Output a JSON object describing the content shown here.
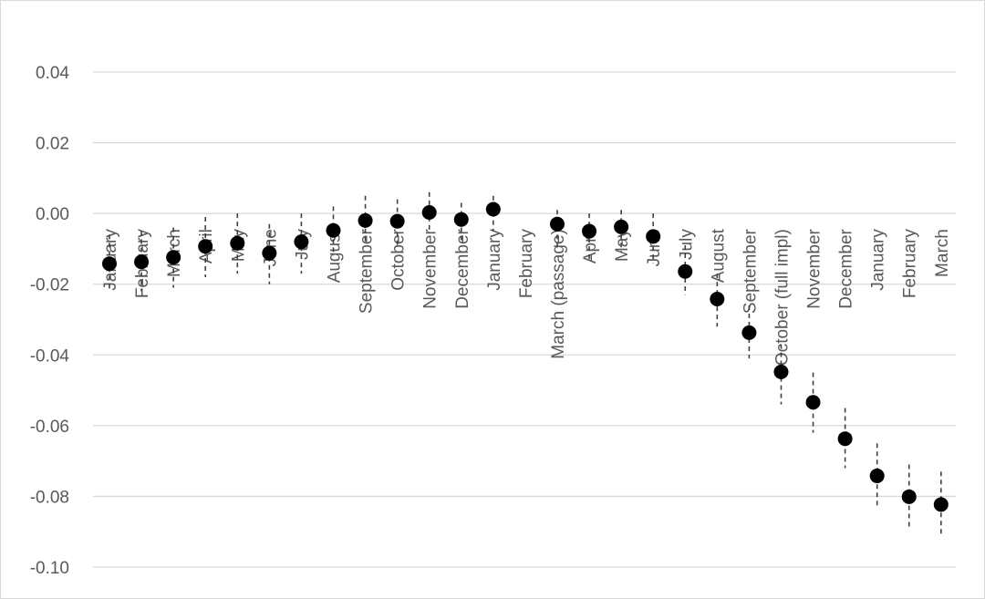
{
  "chart_data": {
    "type": "scatter",
    "title": "",
    "xlabel": "",
    "ylabel": "",
    "ylim": [
      -0.1,
      0.04
    ],
    "yticks": [
      "0.04",
      "0.02",
      "0.00",
      "-0.02",
      "-0.04",
      "-0.06",
      "-0.08",
      "-0.10"
    ],
    "grid": true,
    "categories": [
      "January",
      "February",
      "March",
      "April",
      "May",
      "June",
      "July",
      "August",
      "September",
      "October",
      "November",
      "December",
      "January",
      "February",
      "March (passage)",
      "April",
      "May",
      "June",
      "July",
      "August",
      "September",
      "October (full impl)",
      "November",
      "December",
      "January",
      "February",
      "March"
    ],
    "values": [
      -0.0142,
      -0.0137,
      -0.0124,
      -0.0093,
      -0.0084,
      -0.0112,
      -0.008,
      -0.0048,
      -0.002,
      -0.0022,
      0.0003,
      -0.0017,
      0.0012,
      null,
      -0.003,
      -0.005,
      -0.0038,
      -0.0065,
      -0.0164,
      -0.0242,
      -0.0337,
      -0.0448,
      -0.0534,
      -0.0637,
      -0.0742,
      -0.0801,
      -0.0823
    ],
    "ci_lower": [
      -0.022,
      -0.022,
      -0.021,
      -0.018,
      -0.017,
      -0.02,
      -0.017,
      -0.012,
      -0.008,
      -0.009,
      -0.005,
      -0.008,
      -0.005,
      null,
      -0.01,
      -0.013,
      -0.011,
      -0.014,
      -0.023,
      -0.032,
      -0.041,
      -0.054,
      -0.062,
      -0.072,
      -0.083,
      -0.089,
      -0.091
    ],
    "ci_upper": [
      -0.006,
      -0.005,
      -0.004,
      -0.001,
      -0.0,
      -0.003,
      0.0,
      0.002,
      0.005,
      0.004,
      0.006,
      0.003,
      0.005,
      null,
      0.001,
      0.0,
      0.001,
      -0.0,
      -0.009,
      -0.017,
      -0.026,
      -0.037,
      -0.045,
      -0.055,
      -0.065,
      -0.071,
      -0.073
    ]
  }
}
